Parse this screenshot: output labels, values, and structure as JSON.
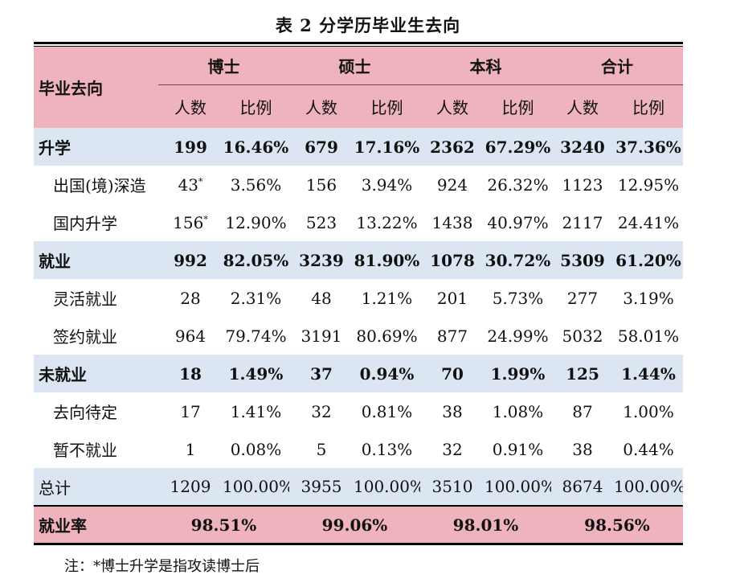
{
  "title": "表 2  分学历毕业生去向",
  "header": {
    "row_label": "毕业去向",
    "groups": [
      "博士",
      "硕士",
      "本科",
      "合计"
    ],
    "count_label": "人数",
    "ratio_label": "比例"
  },
  "rows": [
    {
      "label": "升学",
      "type": "main",
      "cells": [
        "199",
        "16.46%",
        "679",
        "17.16%",
        "2362",
        "67.29%",
        "3240",
        "37.36%"
      ]
    },
    {
      "label": "出国(境)深造",
      "type": "sub",
      "cells": [
        "43",
        "3.56%",
        "156",
        "3.94%",
        "924",
        "26.32%",
        "1123",
        "12.95%"
      ],
      "mark": "*"
    },
    {
      "label": "国内升学",
      "type": "sub",
      "cells": [
        "156",
        "12.90%",
        "523",
        "13.22%",
        "1438",
        "40.97%",
        "2117",
        "24.41%"
      ],
      "mark": "*"
    },
    {
      "label": "就业",
      "type": "main",
      "cells": [
        "992",
        "82.05%",
        "3239",
        "81.90%",
        "1078",
        "30.72%",
        "5309",
        "61.20%"
      ]
    },
    {
      "label": "灵活就业",
      "type": "sub",
      "cells": [
        "28",
        "2.31%",
        "48",
        "1.21%",
        "201",
        "5.73%",
        "277",
        "3.19%"
      ]
    },
    {
      "label": "签约就业",
      "type": "sub",
      "cells": [
        "964",
        "79.74%",
        "3191",
        "80.69%",
        "877",
        "24.99%",
        "5032",
        "58.01%"
      ]
    },
    {
      "label": "未就业",
      "type": "main",
      "cells": [
        "18",
        "1.49%",
        "37",
        "0.94%",
        "70",
        "1.99%",
        "125",
        "1.44%"
      ]
    },
    {
      "label": "去向待定",
      "type": "sub",
      "cells": [
        "17",
        "1.41%",
        "32",
        "0.81%",
        "38",
        "1.08%",
        "87",
        "1.00%"
      ]
    },
    {
      "label": "暂不就业",
      "type": "sub",
      "cells": [
        "1",
        "0.08%",
        "5",
        "0.13%",
        "32",
        "0.91%",
        "38",
        "0.44%"
      ]
    },
    {
      "label": "总计",
      "type": "total",
      "cells": [
        "1209",
        "100.00%",
        "3955",
        "100.00%",
        "3510",
        "100.00%",
        "8674",
        "100.00%"
      ]
    }
  ],
  "employment_rate": {
    "label": "就业率",
    "values": [
      "98.51%",
      "99.06%",
      "98.01%",
      "98.56%"
    ]
  },
  "note": "注：*博士升学是指攻读博士后",
  "colors": {
    "header_pink": "#efb3bd",
    "row_blue": "#dce6f2"
  }
}
